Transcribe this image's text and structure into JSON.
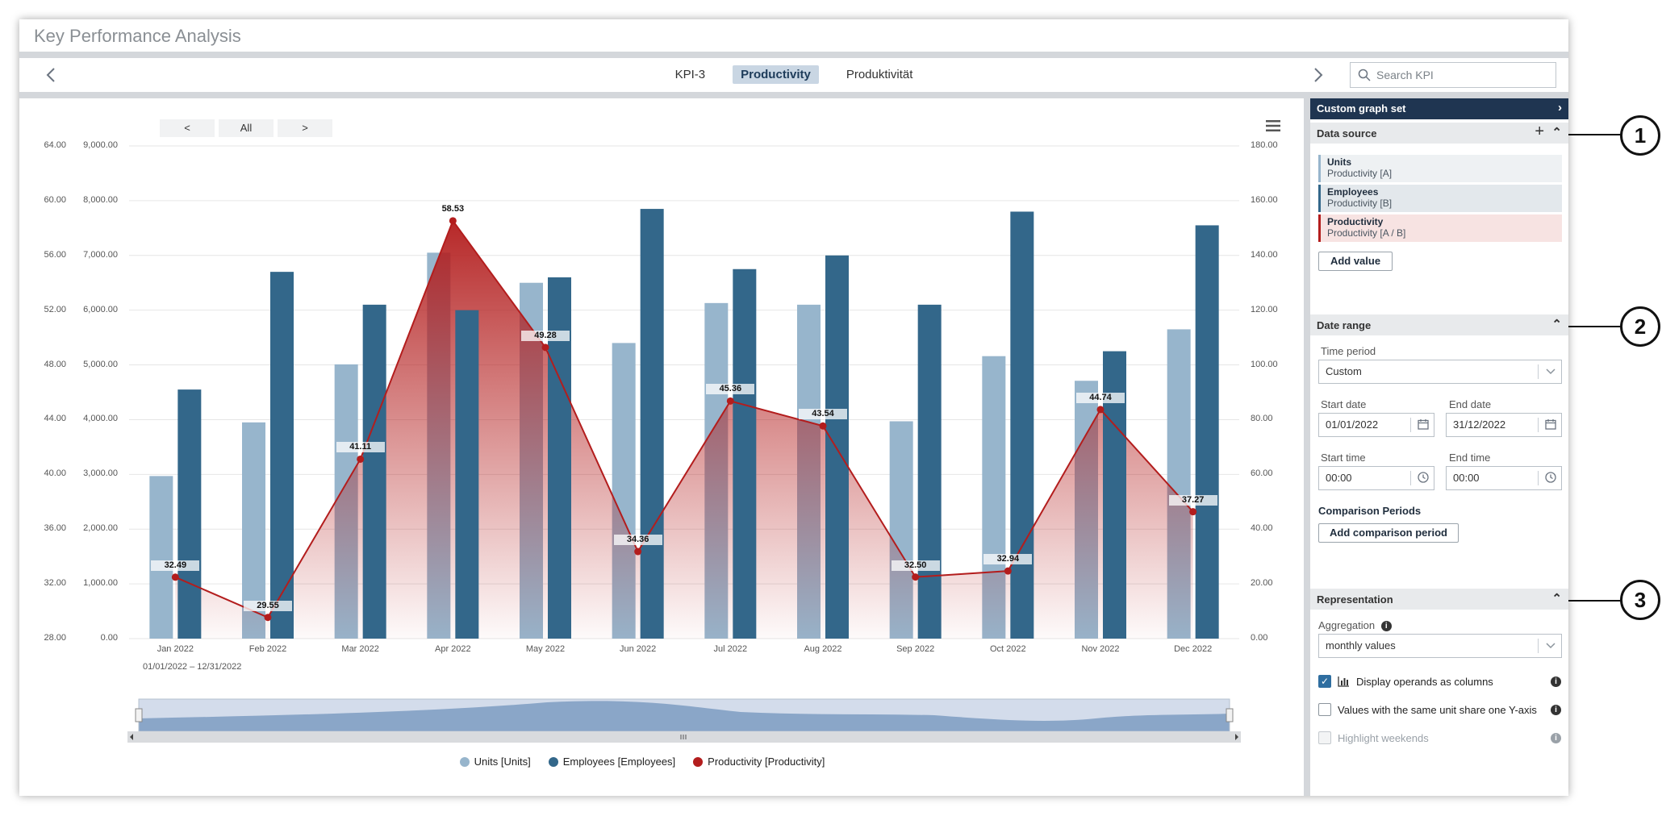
{
  "app": {
    "title": "Key Performance Analysis"
  },
  "nav": {
    "tabs": [
      {
        "label": "KPI-3"
      },
      {
        "label": "Productivity"
      },
      {
        "label": "Produktivität"
      }
    ],
    "search_placeholder": "Search KPI"
  },
  "range_buttons": {
    "prev": "<",
    "all": "All",
    "next": ">"
  },
  "chart_data": {
    "type": "bar",
    "categories": [
      "Jan 2022",
      "Feb 2022",
      "Mar 2022",
      "Apr 2022",
      "May 2022",
      "Jun 2022",
      "Jul 2022",
      "Aug 2022",
      "Sep 2022",
      "Oct 2022",
      "Nov 2022",
      "Dec 2022"
    ],
    "series": [
      {
        "name": "Units [Units]",
        "type": "bar",
        "color": "#97b5cc",
        "axis": "left-units",
        "values": [
          2970,
          3950,
          5010,
          7050,
          6500,
          5400,
          6130,
          6100,
          3970,
          5160,
          4710,
          5650
        ]
      },
      {
        "name": "Employees [Employees]",
        "type": "bar",
        "color": "#33678a",
        "axis": "right",
        "values": [
          91,
          134,
          122,
          120,
          132,
          157,
          135,
          140,
          122,
          156,
          105,
          151
        ]
      },
      {
        "name": "Productivity [Productivity]",
        "type": "area-line",
        "color": "#b31d1d",
        "axis": "left-productivity",
        "values": [
          32.49,
          29.55,
          41.11,
          58.53,
          49.28,
          34.36,
          45.36,
          43.54,
          32.5,
          32.94,
          44.74,
          37.27
        ]
      }
    ],
    "axes": {
      "left_productivity": {
        "range": [
          28,
          64
        ],
        "ticks": [
          "64.00",
          "60.00",
          "56.00",
          "52.00",
          "48.00",
          "44.00",
          "40.00",
          "36.00",
          "32.00",
          "28.00"
        ]
      },
      "left_units": {
        "range": [
          0,
          9000
        ],
        "ticks": [
          "9,000.00",
          "8,000.00",
          "7,000.00",
          "6,000.00",
          "5,000.00",
          "4,000.00",
          "3,000.00",
          "2,000.00",
          "1,000.00",
          "0.00"
        ]
      },
      "right": {
        "range": [
          0,
          180
        ],
        "ticks": [
          "180.00",
          "160.00",
          "140.00",
          "120.00",
          "100.00",
          "80.00",
          "60.00",
          "40.00",
          "20.00",
          "0.00"
        ]
      }
    },
    "data_labels": [
      "32.49",
      "29.55",
      "41.11",
      "58.53",
      "49.28",
      "34.36",
      "45.36",
      "43.54",
      "32.50",
      "32.94",
      "44.74",
      "37.27"
    ],
    "date_range_note": "01/01/2022 – 12/31/2022",
    "legend_position": "bottom",
    "grid": true
  },
  "sidebar": {
    "custom_graph_set": "Custom graph set",
    "data_source": {
      "title": "Data source",
      "items": [
        {
          "name": "Units",
          "sub": "Productivity [A]",
          "accent": "#97b5cc",
          "bg": "#eef1f3"
        },
        {
          "name": "Employees",
          "sub": "Productivity [B]",
          "accent": "#33678a",
          "bg": "#e3e8ec"
        },
        {
          "name": "Productivity",
          "sub": "Productivity [A / B]",
          "accent": "#b31d1d",
          "bg": "#f7e3e2"
        }
      ],
      "add_value": "Add value"
    },
    "date_range": {
      "title": "Date range",
      "time_period_label": "Time period",
      "time_period_value": "Custom",
      "start_date_label": "Start date",
      "start_date_value": "01/01/2022",
      "end_date_label": "End date",
      "end_date_value": "31/12/2022",
      "start_time_label": "Start time",
      "start_time_value": "00:00",
      "end_time_label": "End time",
      "end_time_value": "00:00",
      "comparison_title": "Comparison Periods",
      "add_comparison": "Add comparison period"
    },
    "representation": {
      "title": "Representation",
      "aggregation_label": "Aggregation",
      "aggregation_value": "monthly values",
      "options": [
        {
          "label": "Display operands as columns",
          "checked": true
        },
        {
          "label": "Values with the same unit share one Y-axis",
          "checked": false
        },
        {
          "label": "Highlight weekends",
          "checked": false,
          "disabled": true
        }
      ]
    }
  },
  "callouts": [
    "1",
    "2",
    "3"
  ]
}
